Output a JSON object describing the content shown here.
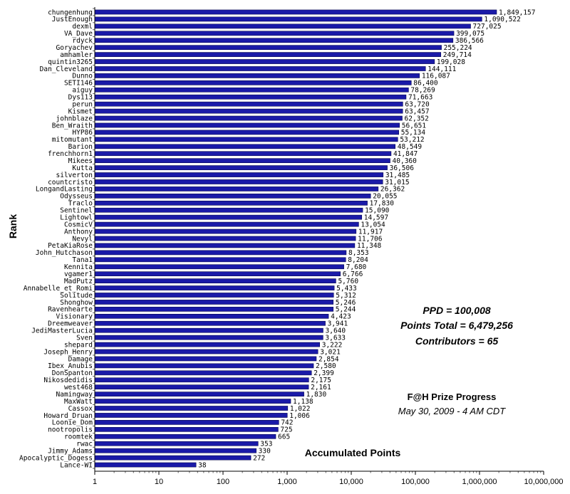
{
  "chart_data": {
    "type": "bar",
    "orientation": "horizontal",
    "x_scale": "log",
    "xlim": [
      1,
      10000000
    ],
    "xticks": [
      "1",
      "10",
      "100",
      "1,000",
      "10,000",
      "100,000",
      "1,000,000",
      "10,000,000"
    ],
    "xlabel": "Accumulated Points",
    "ylabel": "Rank",
    "bar_color": "#1a1aa8",
    "grid": false,
    "categories": [
      "chungenhung",
      "JustEnough",
      "dexml",
      "VA_Dave",
      "rdyck",
      "Goryachev",
      "amhamler",
      "quintin3265",
      "Dan_Cleveland",
      "Dunno",
      "SETI146",
      "aiguy",
      "Dys113",
      "perun",
      "Kismet",
      "johnblaze",
      "Ben_Wraith",
      "HYP86",
      "mitomutant",
      "Barion",
      "frenchhorn1",
      "Mikees",
      "Kutta",
      "silverton",
      "countcristo",
      "LongandLasting",
      "Odysseus",
      "Traclo",
      "Sentinel",
      "Lightowl",
      "CosmicV",
      "Anthony",
      "Nevyl",
      "PetaKiaRose",
      "John_Hutchason",
      "Tana1",
      "Kennita",
      "vgamer1",
      "MadPutz",
      "Annabelle_et_Romi",
      "Solitude",
      "Shonghow",
      "Ravenhearte",
      "Visionary",
      "Dreemweaver",
      "JediMasterLucia",
      "Sven",
      "shepard",
      "Joseph_Henry",
      "Damage",
      "Ibex_Anubis",
      "DonSpanton",
      "Nikosdedidis",
      "west468",
      "Namingway",
      "MaxWatt",
      "Cassox",
      "Howard_Druan",
      "Loonie_Dom",
      "nootropolis",
      "roomtek",
      "rwac",
      "Jimmy_Adams",
      "Apocalyptic_Dogess",
      "Lance-WI"
    ],
    "values": [
      1849157,
      1090522,
      727025,
      399075,
      386566,
      255224,
      249714,
      199028,
      144111,
      116087,
      86400,
      78269,
      71663,
      63720,
      63457,
      62352,
      56651,
      55134,
      53212,
      48549,
      41847,
      40360,
      36506,
      31485,
      31015,
      26362,
      20055,
      17830,
      15090,
      14597,
      13054,
      11917,
      11706,
      11348,
      8353,
      8204,
      7680,
      6766,
      5760,
      5433,
      5312,
      5246,
      5244,
      4423,
      3941,
      3640,
      3633,
      3222,
      3021,
      2854,
      2580,
      2399,
      2175,
      2161,
      1830,
      1138,
      1022,
      1006,
      742,
      725,
      665,
      353,
      330,
      272,
      38
    ],
    "value_labels": [
      "1,849,157",
      "1,090,522",
      "727,025",
      "399,075",
      "386,566",
      "255,224",
      "249,714",
      "199,028",
      "144,111",
      "116,087",
      "86,400",
      "78,269",
      "71,663",
      "63,720",
      "63,457",
      "62,352",
      "56,651",
      "55,134",
      "53,212",
      "48,549",
      "41,847",
      "40,360",
      "36,506",
      "31,485",
      "31,015",
      "26,362",
      "20,055",
      "17,830",
      "15,090",
      "14,597",
      "13,054",
      "11,917",
      "11,706",
      "11,348",
      "8,353",
      "8,204",
      "7,680",
      "6,766",
      "5,760",
      "5,433",
      "5,312",
      "5,246",
      "5,244",
      "4,423",
      "3,941",
      "3,640",
      "3,633",
      "3,222",
      "3,021",
      "2,854",
      "2,580",
      "2,399",
      "2,175",
      "2,161",
      "1,830",
      "1,138",
      "1,022",
      "1,006",
      "742",
      "725",
      "665",
      "353",
      "330",
      "272",
      "38"
    ],
    "annotations": {
      "ppd": "PPD = 100,008",
      "points_total": "Points Total = 6,479,256",
      "contributors": "Contributors = 65",
      "title": "F@H Prize Progress",
      "date": "May 30, 2009 - 4 AM CDT"
    }
  }
}
